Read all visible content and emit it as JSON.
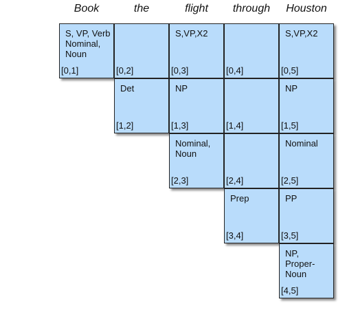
{
  "words": [
    "Book",
    "the",
    "flight",
    "through",
    "Houston"
  ],
  "cells": [
    {
      "i": 0,
      "j": 1,
      "label": "S, VP, Verb\nNominal,\nNoun",
      "index": "[0,1]"
    },
    {
      "i": 0,
      "j": 2,
      "label": "",
      "index": "[0,2]"
    },
    {
      "i": 0,
      "j": 3,
      "label": "S,VP,X2",
      "index": "[0,3]"
    },
    {
      "i": 0,
      "j": 4,
      "label": "",
      "index": "[0,4]"
    },
    {
      "i": 0,
      "j": 5,
      "label": "S,VP,X2",
      "index": "[0,5]"
    },
    {
      "i": 1,
      "j": 2,
      "label": "Det",
      "index": "[1,2]"
    },
    {
      "i": 1,
      "j": 3,
      "label": "NP",
      "index": "[1,3]"
    },
    {
      "i": 1,
      "j": 4,
      "label": "",
      "index": "[1,4]"
    },
    {
      "i": 1,
      "j": 5,
      "label": "NP",
      "index": "[1,5]"
    },
    {
      "i": 2,
      "j": 3,
      "label": "Nominal,\nNoun",
      "index": "[2,3]"
    },
    {
      "i": 2,
      "j": 4,
      "label": "",
      "index": "[2,4]"
    },
    {
      "i": 2,
      "j": 5,
      "label": "Nominal",
      "index": "[2,5]"
    },
    {
      "i": 3,
      "j": 4,
      "label": "Prep",
      "index": "[3,4]"
    },
    {
      "i": 3,
      "j": 5,
      "label": "PP",
      "index": "[3,5]"
    },
    {
      "i": 4,
      "j": 5,
      "label": "NP,\nProper-\nNoun",
      "index": "[4,5]"
    }
  ]
}
